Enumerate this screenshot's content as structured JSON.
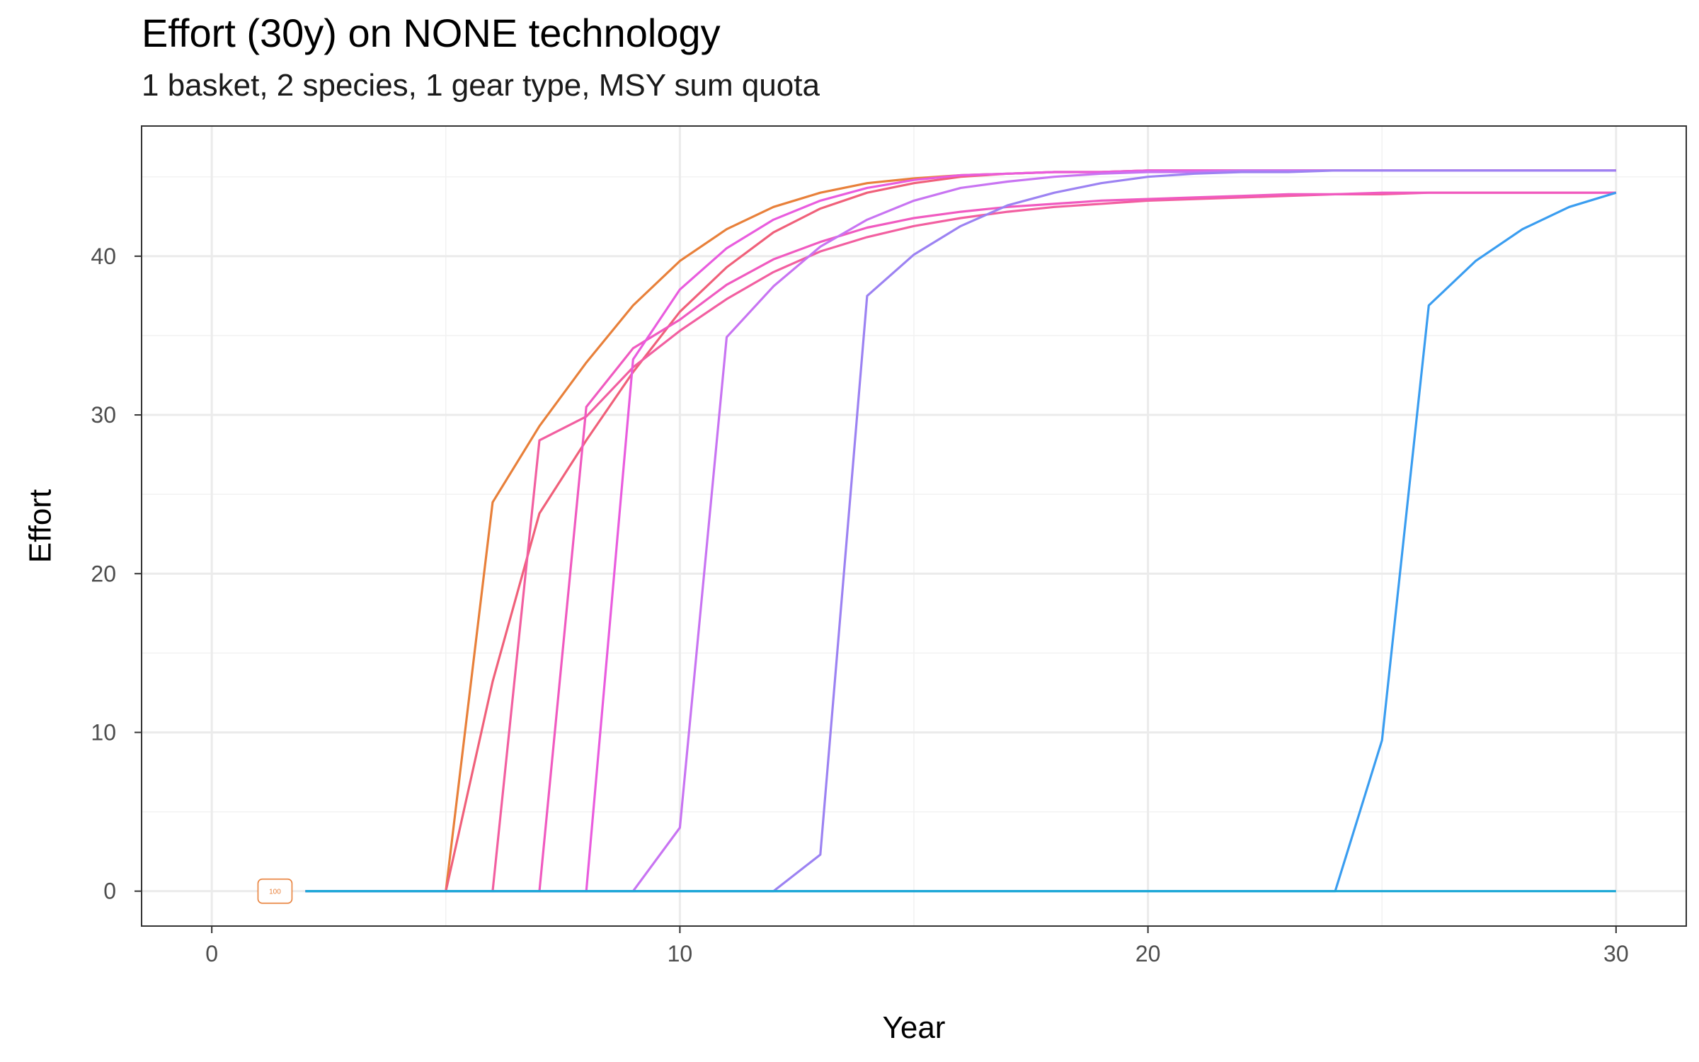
{
  "chart_data": {
    "type": "line",
    "title": "Effort (30y) on NONE technology",
    "subtitle": "1 basket, 2 species, 1 gear type, MSY sum quota",
    "xlabel": "Year",
    "ylabel": "Effort",
    "xlim": [
      -1.5,
      31.5
    ],
    "ylim": [
      -2.2,
      48.2
    ],
    "x_ticks": [
      0,
      10,
      20,
      30
    ],
    "y_ticks": [
      0,
      10,
      20,
      30,
      40
    ],
    "grid": true,
    "legend": "none",
    "annotation": {
      "text": "100",
      "x": 1.35,
      "y": 0,
      "color": "#E8803A"
    },
    "series": [
      {
        "color": "#E8803A",
        "x": [
          2,
          3,
          4,
          5,
          6,
          7,
          8,
          9,
          10,
          11,
          12,
          13,
          14,
          15,
          16,
          17,
          18,
          19,
          20,
          21,
          22,
          23,
          24,
          25,
          26,
          27,
          28,
          29,
          30
        ],
        "values": [
          0,
          0,
          0,
          0,
          24.5,
          29.3,
          33.3,
          36.9,
          39.7,
          41.7,
          43.1,
          44.0,
          44.6,
          44.9,
          45.1,
          45.2,
          45.3,
          45.3,
          45.4,
          45.4,
          45.4,
          45.4,
          45.4,
          45.4,
          45.4,
          45.4,
          45.4,
          45.4,
          45.4
        ]
      },
      {
        "color": "#F0607A",
        "x": [
          2,
          3,
          4,
          5,
          6,
          7,
          8,
          9,
          10,
          11,
          12,
          13,
          14,
          15,
          16,
          17,
          18,
          19,
          20,
          21,
          22,
          23,
          24,
          25,
          26,
          27,
          28,
          29,
          30
        ],
        "values": [
          0,
          0,
          0,
          0,
          13.2,
          23.8,
          28.4,
          32.7,
          36.5,
          39.3,
          41.5,
          43.0,
          44.0,
          44.6,
          45.0,
          45.2,
          45.3,
          45.3,
          45.4,
          45.4,
          45.4,
          45.4,
          45.4,
          45.4,
          45.4,
          45.4,
          45.4,
          45.4,
          45.4
        ]
      },
      {
        "color": "#F25FA0",
        "x": [
          2,
          3,
          4,
          5,
          6,
          7,
          8,
          9,
          10,
          11,
          12,
          13,
          14,
          15,
          16,
          17,
          18,
          19,
          20,
          21,
          22,
          23,
          24,
          25,
          26,
          27,
          28,
          29,
          30
        ],
        "values": [
          0,
          0,
          0,
          0,
          0,
          28.4,
          29.9,
          33.0,
          35.3,
          37.3,
          39.0,
          40.3,
          41.2,
          41.9,
          42.4,
          42.8,
          43.1,
          43.3,
          43.5,
          43.6,
          43.7,
          43.8,
          43.9,
          43.9,
          44.0,
          44.0,
          44.0,
          44.0,
          44.0
        ]
      },
      {
        "color": "#F05AC0",
        "x": [
          2,
          3,
          4,
          5,
          6,
          7,
          8,
          9,
          10,
          11,
          12,
          13,
          14,
          15,
          16,
          17,
          18,
          19,
          20,
          21,
          22,
          23,
          24,
          25,
          26,
          27,
          28,
          29,
          30
        ],
        "values": [
          0,
          0,
          0,
          0,
          0,
          0,
          30.5,
          34.2,
          36.0,
          38.2,
          39.8,
          40.9,
          41.8,
          42.4,
          42.8,
          43.1,
          43.3,
          43.5,
          43.6,
          43.7,
          43.8,
          43.9,
          43.9,
          44.0,
          44.0,
          44.0,
          44.0,
          44.0,
          44.0
        ]
      },
      {
        "color": "#E95CDE",
        "x": [
          2,
          3,
          4,
          5,
          6,
          7,
          8,
          9,
          10,
          11,
          12,
          13,
          14,
          15,
          16,
          17,
          18,
          19,
          20,
          21,
          22,
          23,
          24,
          25,
          26,
          27,
          28,
          29,
          30
        ],
        "values": [
          0,
          0,
          0,
          0,
          0,
          0,
          0,
          33.5,
          37.9,
          40.5,
          42.3,
          43.5,
          44.3,
          44.8,
          45.1,
          45.2,
          45.3,
          45.3,
          45.4,
          45.4,
          45.4,
          45.4,
          45.4,
          45.4,
          45.4,
          45.4,
          45.4,
          45.4,
          45.4
        ]
      },
      {
        "color": "#C874F2",
        "x": [
          2,
          3,
          4,
          5,
          6,
          7,
          8,
          9,
          10,
          11,
          12,
          13,
          14,
          15,
          16,
          17,
          18,
          19,
          20,
          21,
          22,
          23,
          24,
          25,
          26,
          27,
          28,
          29,
          30
        ],
        "values": [
          0,
          0,
          0,
          0,
          0,
          0,
          0,
          0,
          4.0,
          34.9,
          38.1,
          40.6,
          42.3,
          43.5,
          44.3,
          44.7,
          45.0,
          45.2,
          45.3,
          45.3,
          45.4,
          45.4,
          45.4,
          45.4,
          45.4,
          45.4,
          45.4,
          45.4,
          45.4
        ]
      },
      {
        "color": "#9C82F2",
        "x": [
          2,
          3,
          4,
          5,
          6,
          7,
          8,
          9,
          10,
          11,
          12,
          13,
          14,
          15,
          16,
          17,
          18,
          19,
          20,
          21,
          22,
          23,
          24,
          25,
          26,
          27,
          28,
          29,
          30
        ],
        "values": [
          0,
          0,
          0,
          0,
          0,
          0,
          0,
          0,
          0,
          0,
          0,
          2.3,
          37.5,
          40.1,
          41.9,
          43.2,
          44.0,
          44.6,
          45.0,
          45.2,
          45.3,
          45.3,
          45.4,
          45.4,
          45.4,
          45.4,
          45.4,
          45.4,
          45.4
        ]
      },
      {
        "color": "#3A9DF0",
        "x": [
          2,
          3,
          4,
          5,
          6,
          7,
          8,
          9,
          10,
          11,
          12,
          13,
          14,
          15,
          16,
          17,
          18,
          19,
          20,
          21,
          22,
          23,
          24,
          25,
          26,
          27,
          28,
          29,
          30
        ],
        "values": [
          0,
          0,
          0,
          0,
          0,
          0,
          0,
          0,
          0,
          0,
          0,
          0,
          0,
          0,
          0,
          0,
          0,
          0,
          0,
          0,
          0,
          0,
          0,
          9.5,
          36.9,
          39.7,
          41.7,
          43.1,
          44.0
        ]
      },
      {
        "color": "#1AA7D6",
        "x": [
          2,
          3,
          4,
          5,
          6,
          7,
          8,
          9,
          10,
          11,
          12,
          13,
          14,
          15,
          16,
          17,
          18,
          19,
          20,
          21,
          22,
          23,
          24,
          25,
          26,
          27,
          28,
          29,
          30
        ],
        "values": [
          0,
          0,
          0,
          0,
          0,
          0,
          0,
          0,
          0,
          0,
          0,
          0,
          0,
          0,
          0,
          0,
          0,
          0,
          0,
          0,
          0,
          0,
          0,
          0,
          0,
          0,
          0,
          0,
          0
        ]
      }
    ]
  }
}
